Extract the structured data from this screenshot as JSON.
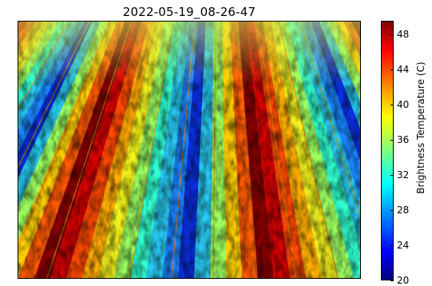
{
  "title": "2022-05-19_08-26-47",
  "colorbar": {
    "label": "Brightness Temperature (C)",
    "ticks": [
      "20",
      "24",
      "28",
      "32",
      "36",
      "40",
      "44",
      "48"
    ],
    "range": [
      20,
      49.5
    ],
    "colormap": "jet",
    "colors": [
      "#00007f",
      "#0000ff",
      "#007fff",
      "#00ffff",
      "#7fff7f",
      "#ffff00",
      "#ff7f00",
      "#ff0000",
      "#7f0000"
    ]
  },
  "image": {
    "description_type": "thermal infrared crop rows",
    "icon": "thermal-image"
  }
}
